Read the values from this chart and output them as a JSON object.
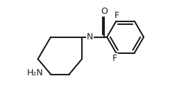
{
  "bg_color": "#ffffff",
  "line_color": "#1a1a1a",
  "line_width": 1.5,
  "font_size": 9.0,
  "font_family": "DejaVu Sans",
  "xlim": [
    -1.6,
    2.8
  ],
  "ylim": [
    -1.3,
    1.3
  ]
}
